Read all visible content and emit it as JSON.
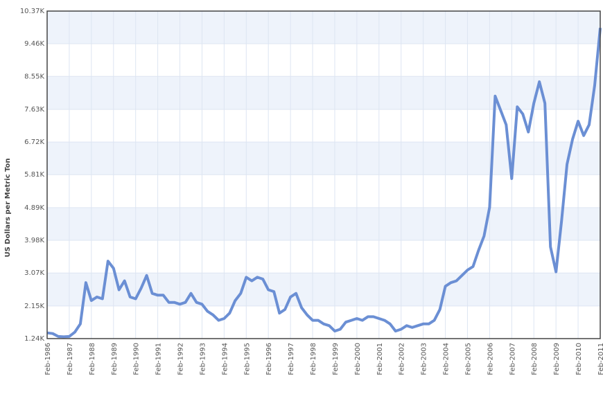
{
  "chart_data": {
    "type": "line",
    "y_label": "US Dollars per Metric Ton",
    "x": [
      "Feb-1986",
      "May-1986",
      "Aug-1986",
      "Nov-1986",
      "Feb-1987",
      "May-1987",
      "Aug-1987",
      "Nov-1987",
      "Feb-1988",
      "May-1988",
      "Aug-1988",
      "Nov-1988",
      "Feb-1989",
      "May-1989",
      "Aug-1989",
      "Nov-1989",
      "Feb-1990",
      "May-1990",
      "Aug-1990",
      "Nov-1990",
      "Feb-1991",
      "May-1991",
      "Aug-1991",
      "Nov-1991",
      "Feb-1992",
      "May-1992",
      "Aug-1992",
      "Nov-1992",
      "Feb-1993",
      "May-1993",
      "Aug-1993",
      "Nov-1993",
      "Feb-1994",
      "May-1994",
      "Aug-1994",
      "Nov-1994",
      "Feb-1995",
      "May-1995",
      "Aug-1995",
      "Nov-1995",
      "Feb-1996",
      "May-1996",
      "Aug-1996",
      "Nov-1996",
      "Feb-1997",
      "May-1997",
      "Aug-1997",
      "Nov-1997",
      "Feb-1998",
      "May-1998",
      "Aug-1998",
      "Nov-1998",
      "Feb-1999",
      "May-1999",
      "Aug-1999",
      "Nov-1999",
      "Feb-2000",
      "May-2000",
      "Aug-2000",
      "Nov-2000",
      "Feb-2001",
      "May-2001",
      "Aug-2001",
      "Nov-2001",
      "Feb-2002",
      "May-2002",
      "Aug-2002",
      "Nov-2002",
      "Feb-2003",
      "May-2003",
      "Aug-2003",
      "Nov-2003",
      "Feb-2004",
      "May-2004",
      "Aug-2004",
      "Nov-2004",
      "Feb-2005",
      "May-2005",
      "Aug-2005",
      "Nov-2005",
      "Feb-2006",
      "May-2006",
      "Aug-2006",
      "Nov-2006",
      "Feb-2007",
      "May-2007",
      "Aug-2007",
      "Nov-2007",
      "Feb-2008",
      "May-2008",
      "Aug-2008",
      "Nov-2008",
      "Feb-2009",
      "May-2009",
      "Aug-2009",
      "Nov-2009",
      "Feb-2010",
      "May-2010",
      "Aug-2010",
      "Nov-2010",
      "Feb-2011"
    ],
    "series": [
      {
        "color": "#6b8fd4",
        "values": [
          1400,
          1380,
          1300,
          1290,
          1300,
          1420,
          1650,
          2800,
          2300,
          2400,
          2350,
          3400,
          3200,
          2600,
          2850,
          2400,
          2350,
          2650,
          3000,
          2500,
          2450,
          2450,
          2250,
          2250,
          2200,
          2250,
          2500,
          2250,
          2200,
          2000,
          1900,
          1750,
          1800,
          1950,
          2300,
          2500,
          2950,
          2850,
          2950,
          2900,
          2600,
          2550,
          1950,
          2050,
          2400,
          2500,
          2100,
          1900,
          1750,
          1750,
          1650,
          1600,
          1450,
          1500,
          1700,
          1750,
          1800,
          1750,
          1850,
          1850,
          1800,
          1750,
          1650,
          1450,
          1500,
          1600,
          1550,
          1600,
          1650,
          1650,
          1750,
          2050,
          2700,
          2800,
          2850,
          3000,
          3150,
          3250,
          3700,
          4100,
          4900,
          8000,
          7600,
          7200,
          5700,
          7700,
          7500,
          7000,
          7800,
          8400,
          7800,
          3800,
          3100,
          4500,
          6100,
          6800,
          7300,
          6900,
          7200,
          8300,
          9900
        ]
      }
    ],
    "ylim": [
      1240,
      10370
    ],
    "yticks": [
      {
        "value": 1240,
        "label": "1.24K"
      },
      {
        "value": 2150,
        "label": "2.15K"
      },
      {
        "value": 3070,
        "label": "3.07K"
      },
      {
        "value": 3980,
        "label": "3.98K"
      },
      {
        "value": 4890,
        "label": "4.89K"
      },
      {
        "value": 5810,
        "label": "5.81K"
      },
      {
        "value": 6720,
        "label": "6.72K"
      },
      {
        "value": 7630,
        "label": "7.63K"
      },
      {
        "value": 8550,
        "label": "8.55K"
      },
      {
        "value": 9460,
        "label": "9.46K"
      },
      {
        "value": 10370,
        "label": "10.37K"
      }
    ],
    "grid": true
  }
}
